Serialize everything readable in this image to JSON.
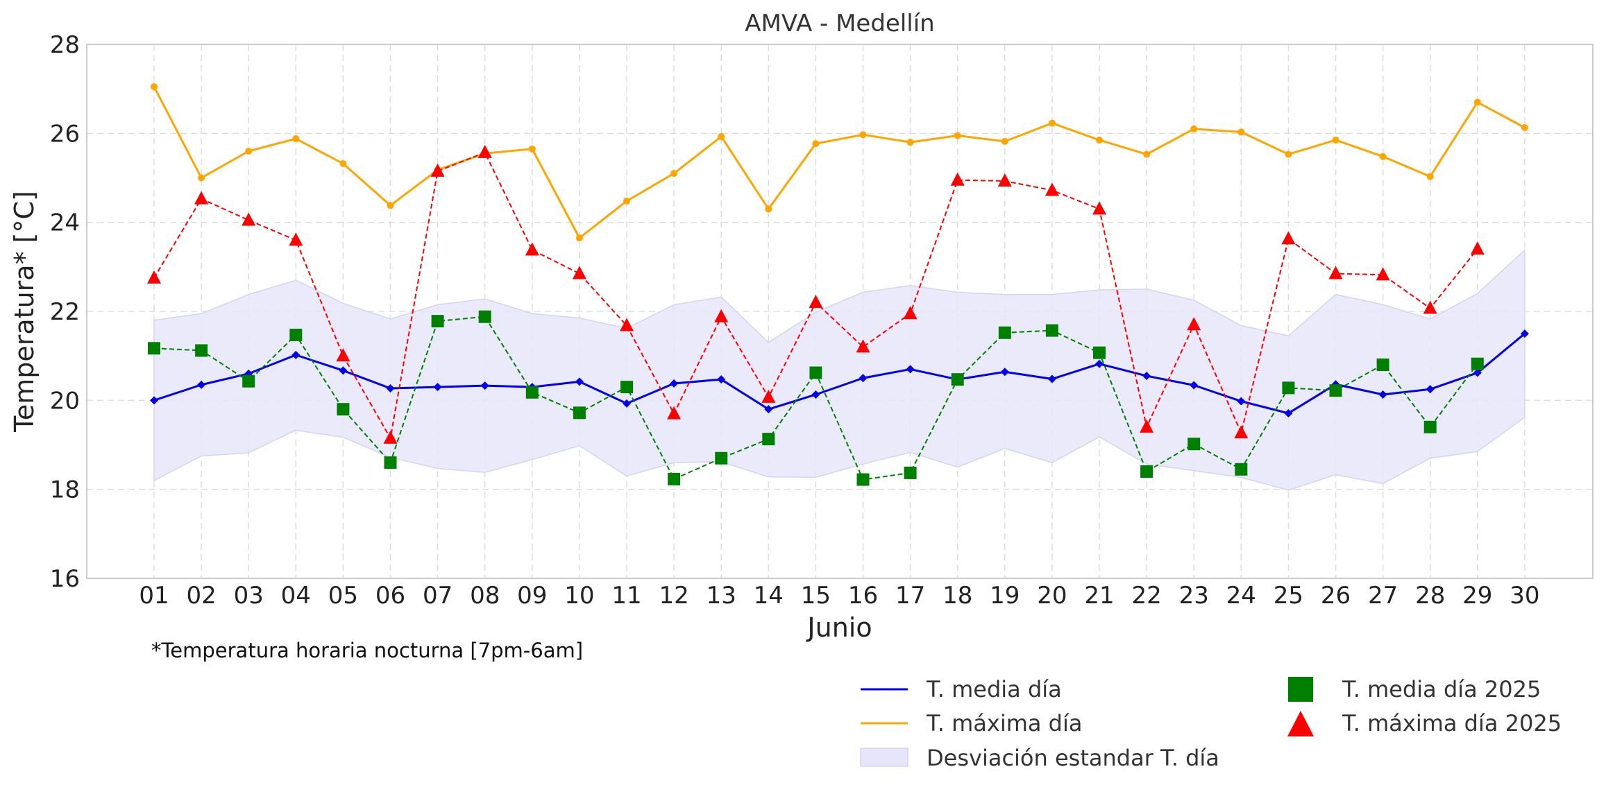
{
  "chart_data": {
    "type": "line",
    "title": "AMVA - Medellín",
    "xlabel": "Junio",
    "ylabel": "Temperatura* [°C]",
    "note": "*Temperatura horaria nocturna [7pm-6am]",
    "ylim": [
      16,
      28
    ],
    "yticks": [
      "16",
      "18",
      "20",
      "22",
      "24",
      "26",
      "28"
    ],
    "categories": [
      "01",
      "02",
      "03",
      "04",
      "05",
      "06",
      "07",
      "08",
      "09",
      "10",
      "11",
      "12",
      "13",
      "14",
      "15",
      "16",
      "17",
      "18",
      "19",
      "20",
      "21",
      "22",
      "23",
      "24",
      "25",
      "26",
      "27",
      "28",
      "29",
      "30"
    ],
    "grid": true,
    "legend_position": "bottom-right",
    "series": [
      {
        "name": "T. media día",
        "kind": "line",
        "color": "#0000ee",
        "values": [
          20.0,
          20.35,
          20.6,
          21.02,
          20.67,
          20.27,
          20.3,
          20.33,
          20.3,
          20.42,
          19.93,
          20.38,
          20.47,
          19.8,
          20.13,
          20.5,
          20.7,
          20.47,
          20.64,
          20.48,
          20.82,
          20.55,
          20.34,
          19.98,
          19.71,
          20.36,
          20.13,
          20.25,
          20.62,
          21.5
        ]
      },
      {
        "name": "T. máxima día",
        "kind": "line",
        "color": "#ffa500",
        "values": [
          27.05,
          25.0,
          25.6,
          25.88,
          25.32,
          24.38,
          25.18,
          25.55,
          25.65,
          23.65,
          24.48,
          25.1,
          25.93,
          24.3,
          25.77,
          25.97,
          25.8,
          25.95,
          25.82,
          26.23,
          25.85,
          25.53,
          26.1,
          26.03,
          25.53,
          25.85,
          25.48,
          25.03,
          26.7,
          26.13
        ]
      },
      {
        "name": "Desviación estandar T. día",
        "kind": "band",
        "color": "#e6e6fa",
        "upper": [
          21.8,
          21.95,
          22.38,
          22.7,
          22.18,
          21.83,
          22.15,
          22.28,
          21.95,
          21.85,
          21.62,
          22.15,
          22.32,
          21.3,
          21.98,
          22.43,
          22.58,
          22.43,
          22.38,
          22.38,
          22.48,
          22.5,
          22.25,
          21.68,
          21.45,
          22.38,
          22.15,
          21.83,
          22.4,
          23.38
        ],
        "lower": [
          18.2,
          18.75,
          18.82,
          19.33,
          19.17,
          18.72,
          18.47,
          18.38,
          18.67,
          18.98,
          18.3,
          18.6,
          18.62,
          18.28,
          18.27,
          18.57,
          18.83,
          18.5,
          18.92,
          18.6,
          19.18,
          18.57,
          18.42,
          18.27,
          17.98,
          18.33,
          18.13,
          18.7,
          18.85,
          19.62
        ]
      },
      {
        "name": "T. media día 2025",
        "kind": "markers",
        "marker": "square",
        "color": "#008000",
        "values": [
          21.17,
          21.12,
          20.43,
          21.47,
          19.8,
          18.6,
          21.78,
          21.88,
          20.18,
          19.72,
          20.3,
          18.23,
          18.7,
          19.13,
          20.62,
          18.22,
          18.37,
          20.47,
          21.52,
          21.57,
          21.07,
          18.4,
          19.02,
          18.45,
          20.28,
          20.22,
          20.8,
          19.4,
          20.82,
          null
        ]
      },
      {
        "name": "T. máxima día 2025",
        "kind": "markers",
        "marker": "triangle",
        "color": "#ff0000",
        "values": [
          22.75,
          24.53,
          24.05,
          23.6,
          21.0,
          19.15,
          25.15,
          25.57,
          23.38,
          22.85,
          21.68,
          19.7,
          21.88,
          20.07,
          22.2,
          21.2,
          21.95,
          24.95,
          24.93,
          24.72,
          24.3,
          19.4,
          21.7,
          19.27,
          23.63,
          22.85,
          22.82,
          22.07,
          23.4,
          null
        ]
      }
    ]
  }
}
